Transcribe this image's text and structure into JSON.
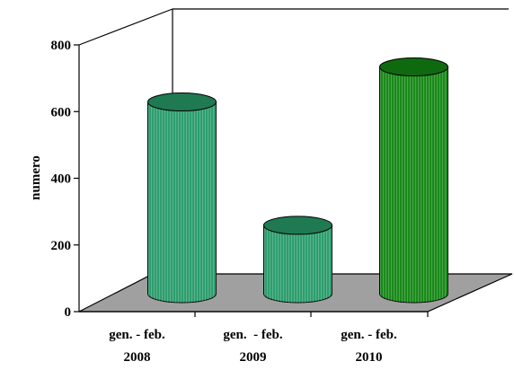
{
  "chart_data": {
    "type": "bar",
    "style": "3d-cylinder",
    "categories": [
      [
        "gen. - feb.",
        "2008"
      ],
      [
        "gen.  - feb.",
        "2009"
      ],
      [
        "gen. - feb.",
        "2010"
      ]
    ],
    "values": [
      575,
      205,
      680
    ],
    "ylabel": "numero",
    "xlabel": "",
    "title": "",
    "ylim": [
      0,
      800
    ],
    "yticks": [
      0,
      200,
      400,
      600,
      800
    ],
    "grid": false,
    "legend": "none",
    "colors": [
      "#2e9e6e",
      "#2e9e6e",
      "#1a8a1a"
    ],
    "top_colors": [
      "#1f7a52",
      "#1f7a52",
      "#0f6a0f"
    ],
    "floor_color": "#a0a0a0"
  }
}
